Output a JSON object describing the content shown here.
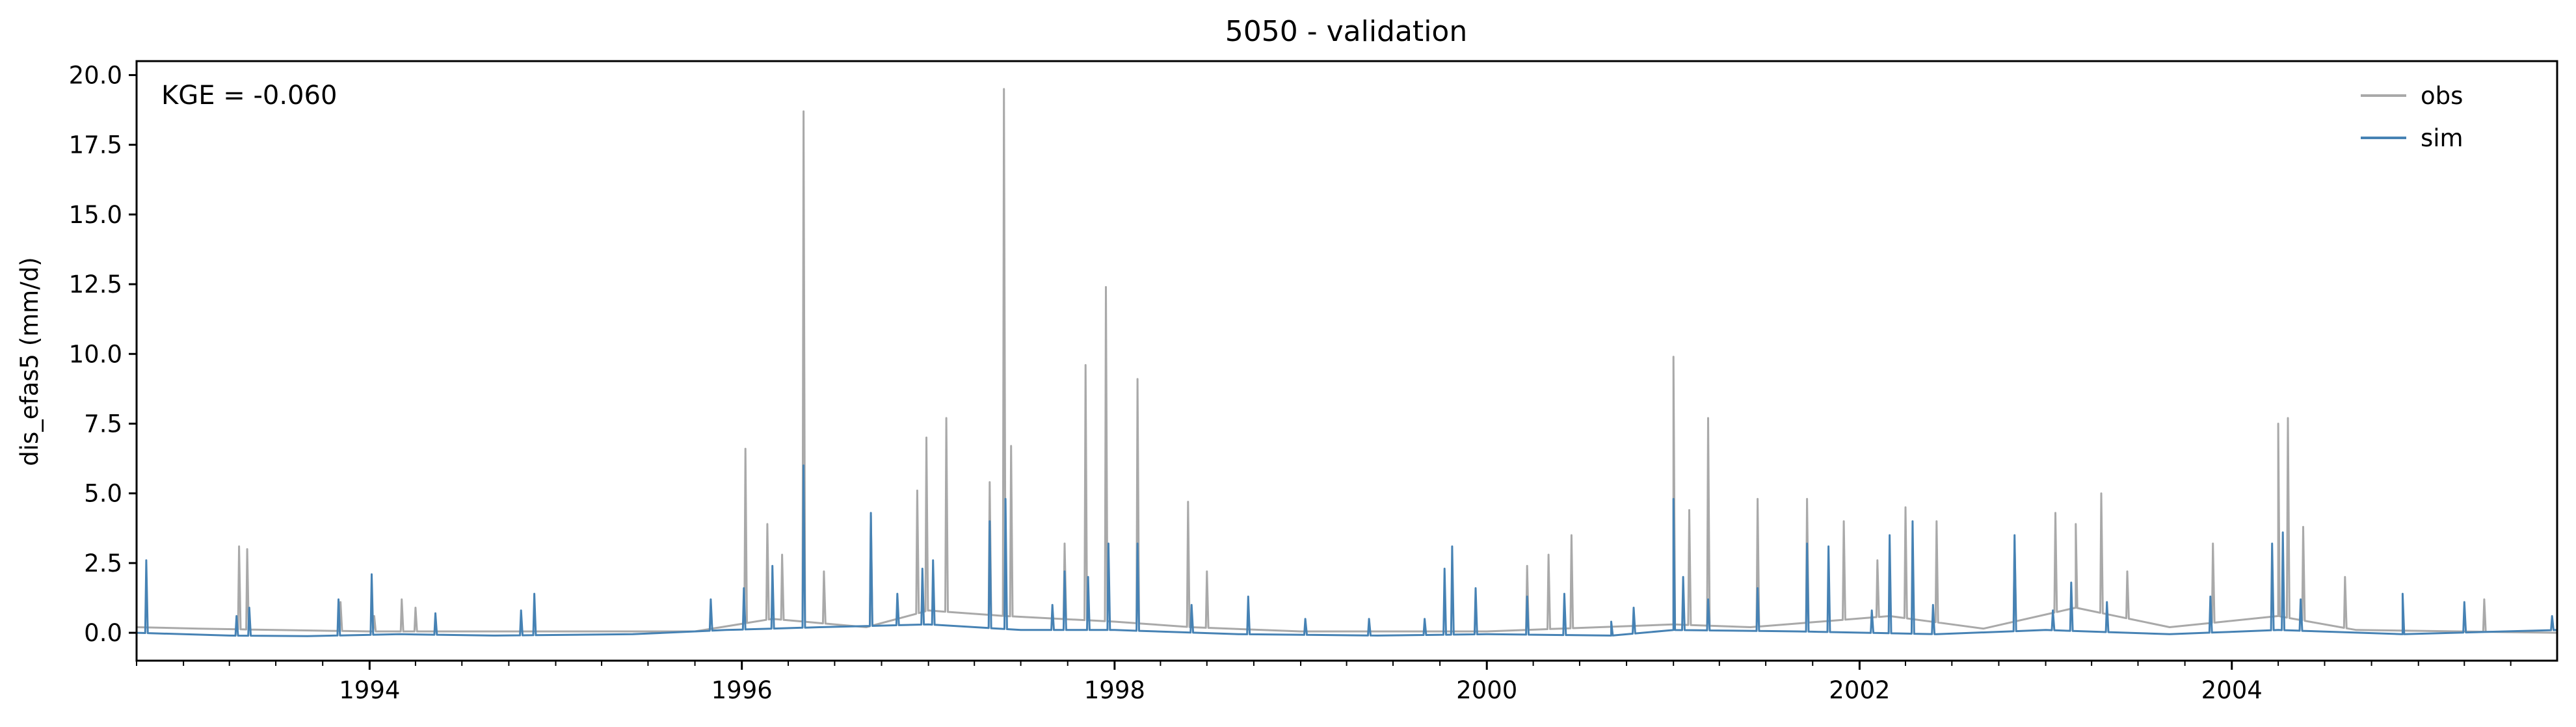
{
  "chart_data": {
    "type": "line",
    "title": "5050 - validation",
    "xlabel": "",
    "ylabel": "dis_efas5 (mm/d)",
    "annotation": "KGE = -0.060",
    "x_range": [
      "1992-10-01",
      "2005-09-30"
    ],
    "ylim": [
      -1.0,
      20.5
    ],
    "yticks": [
      "0.0",
      "2.5",
      "5.0",
      "7.5",
      "10.0",
      "12.5",
      "15.0",
      "17.5",
      "20.0"
    ],
    "xticks": [
      "1994",
      "1996",
      "1998",
      "2000",
      "2002",
      "2004"
    ],
    "grid": false,
    "legend": {
      "position": "top-right"
    },
    "series": [
      {
        "name": "obs",
        "color": "#a9a9a9",
        "baseline": [
          [
            "1992-10-01",
            0.2
          ],
          [
            "1993-02-01",
            0.15
          ],
          [
            "1993-07-01",
            0.1
          ],
          [
            "1994-01-01",
            0.05
          ],
          [
            "1994-06-01",
            0.05
          ],
          [
            "1995-01-01",
            0.05
          ],
          [
            "1995-10-01",
            0.05
          ],
          [
            "1996-03-01",
            0.5
          ],
          [
            "1996-09-01",
            0.2
          ],
          [
            "1997-01-01",
            0.8
          ],
          [
            "1997-06-01",
            0.6
          ],
          [
            "1998-01-01",
            0.4
          ],
          [
            "1998-06-01",
            0.2
          ],
          [
            "1999-01-01",
            0.05
          ],
          [
            "2000-01-01",
            0.05
          ],
          [
            "2001-01-01",
            0.3
          ],
          [
            "2001-06-01",
            0.2
          ],
          [
            "2002-03-01",
            0.6
          ],
          [
            "2002-09-01",
            0.15
          ],
          [
            "2003-03-01",
            0.9
          ],
          [
            "2003-09-01",
            0.2
          ],
          [
            "2004-04-01",
            0.6
          ],
          [
            "2004-09-01",
            0.1
          ],
          [
            "2005-09-30",
            0.0
          ]
        ],
        "peaks": [
          [
            "1993-04-20",
            3.1
          ],
          [
            "1993-05-06",
            3.0
          ],
          [
            "1993-11-05",
            1.1
          ],
          [
            "1994-01-10",
            0.6
          ],
          [
            "1994-03-05",
            1.2
          ],
          [
            "1994-04-01",
            0.9
          ],
          [
            "1996-01-08",
            6.6
          ],
          [
            "1996-02-20",
            3.9
          ],
          [
            "1996-03-20",
            2.8
          ],
          [
            "1996-05-01",
            18.7
          ],
          [
            "1996-06-10",
            2.2
          ],
          [
            "1996-09-10",
            4.2
          ],
          [
            "1996-12-10",
            5.1
          ],
          [
            "1996-12-28",
            7.0
          ],
          [
            "1997-02-05",
            7.7
          ],
          [
            "1997-05-01",
            5.4
          ],
          [
            "1997-05-29",
            19.5
          ],
          [
            "1997-06-12",
            6.7
          ],
          [
            "1997-09-25",
            3.2
          ],
          [
            "1997-11-05",
            9.6
          ],
          [
            "1997-12-15",
            12.4
          ],
          [
            "1998-02-15",
            9.1
          ],
          [
            "1998-05-25",
            4.7
          ],
          [
            "1998-07-01",
            2.2
          ],
          [
            "2000-03-20",
            2.4
          ],
          [
            "2000-05-01",
            2.8
          ],
          [
            "2000-06-15",
            3.5
          ],
          [
            "2001-01-01",
            9.9
          ],
          [
            "2001-02-01",
            4.4
          ],
          [
            "2001-03-10",
            7.7
          ],
          [
            "2001-06-15",
            4.8
          ],
          [
            "2001-09-20",
            4.8
          ],
          [
            "2001-12-01",
            4.0
          ],
          [
            "2002-02-05",
            2.6
          ],
          [
            "2002-04-01",
            4.5
          ],
          [
            "2002-06-01",
            4.0
          ],
          [
            "2002-11-01",
            3.3
          ],
          [
            "2003-01-20",
            4.3
          ],
          [
            "2003-03-01",
            3.9
          ],
          [
            "2003-04-20",
            5.0
          ],
          [
            "2003-06-10",
            2.2
          ],
          [
            "2003-11-25",
            3.2
          ],
          [
            "2004-04-01",
            7.5
          ],
          [
            "2004-04-20",
            7.7
          ],
          [
            "2004-05-20",
            3.8
          ],
          [
            "2004-08-10",
            2.0
          ],
          [
            "2005-05-10",
            1.2
          ]
        ]
      },
      {
        "name": "sim",
        "color": "#4682b4",
        "baseline": [
          [
            "1992-10-01",
            0.0
          ],
          [
            "1993-04-01",
            -0.1
          ],
          [
            "1993-09-01",
            -0.12
          ],
          [
            "1994-03-01",
            -0.05
          ],
          [
            "1994-09-01",
            -0.1
          ],
          [
            "1995-06-01",
            -0.05
          ],
          [
            "1995-12-01",
            0.1
          ],
          [
            "1996-06-01",
            0.2
          ],
          [
            "1997-01-01",
            0.3
          ],
          [
            "1997-07-01",
            0.1
          ],
          [
            "1998-01-01",
            0.1
          ],
          [
            "1998-09-01",
            -0.05
          ],
          [
            "1999-06-01",
            -0.1
          ],
          [
            "2000-01-01",
            -0.05
          ],
          [
            "2000-09-01",
            -0.1
          ],
          [
            "2001-01-01",
            0.1
          ],
          [
            "2001-09-01",
            0.05
          ],
          [
            "2002-06-01",
            -0.05
          ],
          [
            "2003-01-01",
            0.1
          ],
          [
            "2003-09-01",
            -0.05
          ],
          [
            "2004-04-01",
            0.1
          ],
          [
            "2004-12-01",
            -0.05
          ],
          [
            "2005-09-30",
            0.1
          ]
        ],
        "peaks": [
          [
            "1992-10-20",
            2.6
          ],
          [
            "1993-04-15",
            0.6
          ],
          [
            "1993-05-10",
            0.9
          ],
          [
            "1993-11-01",
            1.2
          ],
          [
            "1994-01-05",
            2.1
          ],
          [
            "1994-05-10",
            0.7
          ],
          [
            "1994-10-25",
            0.8
          ],
          [
            "1994-11-20",
            1.4
          ],
          [
            "1995-11-01",
            1.2
          ],
          [
            "1996-01-05",
            1.6
          ],
          [
            "1996-03-01",
            2.4
          ],
          [
            "1996-05-01",
            6.0
          ],
          [
            "1996-09-10",
            4.3
          ],
          [
            "1996-11-01",
            1.4
          ],
          [
            "1996-12-20",
            2.3
          ],
          [
            "1997-01-10",
            2.6
          ],
          [
            "1997-05-01",
            4.0
          ],
          [
            "1997-06-01",
            4.8
          ],
          [
            "1997-09-01",
            1.0
          ],
          [
            "1997-09-25",
            2.2
          ],
          [
            "1997-11-10",
            2.0
          ],
          [
            "1997-12-20",
            3.2
          ],
          [
            "1998-02-15",
            3.2
          ],
          [
            "1998-06-01",
            1.0
          ],
          [
            "1998-09-20",
            1.3
          ],
          [
            "1999-01-10",
            0.5
          ],
          [
            "1999-05-15",
            0.5
          ],
          [
            "1999-09-01",
            0.5
          ],
          [
            "1999-10-10",
            2.3
          ],
          [
            "1999-10-25",
            3.1
          ],
          [
            "1999-12-10",
            1.6
          ],
          [
            "2000-03-20",
            1.3
          ],
          [
            "2000-06-01",
            1.4
          ],
          [
            "2000-09-01",
            0.4
          ],
          [
            "2000-10-15",
            0.9
          ],
          [
            "2001-01-01",
            4.8
          ],
          [
            "2001-01-20",
            2.0
          ],
          [
            "2001-03-10",
            1.2
          ],
          [
            "2001-06-15",
            1.6
          ],
          [
            "2001-09-20",
            3.2
          ],
          [
            "2001-11-01",
            3.1
          ],
          [
            "2002-01-25",
            0.8
          ],
          [
            "2002-03-01",
            3.5
          ],
          [
            "2002-04-15",
            4.0
          ],
          [
            "2002-05-25",
            1.0
          ],
          [
            "2002-11-01",
            3.5
          ],
          [
            "2003-01-15",
            0.8
          ],
          [
            "2003-02-20",
            1.8
          ],
          [
            "2003-05-01",
            1.1
          ],
          [
            "2003-11-20",
            1.3
          ],
          [
            "2004-03-20",
            3.2
          ],
          [
            "2004-04-10",
            3.6
          ],
          [
            "2004-05-15",
            1.2
          ],
          [
            "2004-12-01",
            1.4
          ],
          [
            "2005-04-01",
            1.1
          ],
          [
            "2005-09-20",
            0.6
          ]
        ]
      }
    ]
  }
}
